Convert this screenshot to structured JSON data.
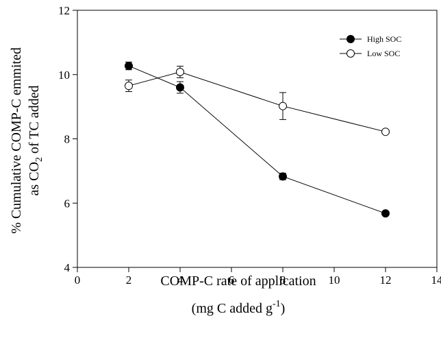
{
  "chart_data": {
    "type": "scatter",
    "xlabel": "COMP-C rate of application",
    "xlabel_units_prefix": "(mg C added g",
    "xlabel_units_exp": "-1",
    "xlabel_units_suffix": ")",
    "ylabel_line1": "% Cumulative COMP-C emmited",
    "ylabel_line2_prefix": "as CO",
    "ylabel_line2_sub": "2",
    "ylabel_line2_suffix": " of TC added",
    "xlim": [
      0,
      14
    ],
    "ylim": [
      4,
      12
    ],
    "xticks": [
      0,
      2,
      4,
      6,
      8,
      10,
      12,
      14
    ],
    "yticks": [
      4,
      6,
      8,
      10,
      12
    ],
    "grid": false,
    "legend_position": "top-right",
    "series": [
      {
        "name": "High SOC",
        "marker": "filled-circle",
        "color": "#000000",
        "x": [
          2,
          4,
          8,
          12
        ],
        "y": [
          10.27,
          9.6,
          6.83,
          5.68
        ],
        "err": [
          0.12,
          0.18,
          0.1,
          0.05
        ]
      },
      {
        "name": "Low SOC",
        "marker": "open-circle",
        "color": "#000000",
        "x": [
          2,
          4,
          8,
          12
        ],
        "y": [
          9.65,
          10.08,
          9.02,
          8.22
        ],
        "err": [
          0.18,
          0.18,
          0.42,
          0.05
        ]
      }
    ]
  }
}
